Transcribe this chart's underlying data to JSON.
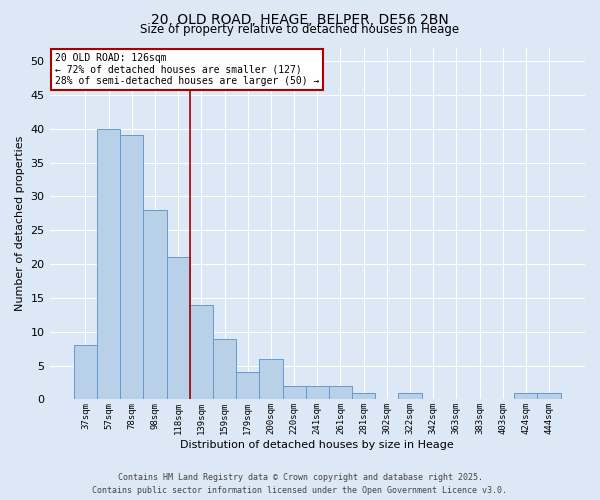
{
  "title_line1": "20, OLD ROAD, HEAGE, BELPER, DE56 2BN",
  "title_line2": "Size of property relative to detached houses in Heage",
  "xlabel": "Distribution of detached houses by size in Heage",
  "ylabel": "Number of detached properties",
  "categories": [
    "37sqm",
    "57sqm",
    "78sqm",
    "98sqm",
    "118sqm",
    "139sqm",
    "159sqm",
    "179sqm",
    "200sqm",
    "220sqm",
    "241sqm",
    "261sqm",
    "281sqm",
    "302sqm",
    "322sqm",
    "342sqm",
    "363sqm",
    "383sqm",
    "403sqm",
    "424sqm",
    "444sqm"
  ],
  "values": [
    8,
    40,
    39,
    28,
    21,
    14,
    9,
    4,
    6,
    2,
    2,
    2,
    1,
    0,
    1,
    0,
    0,
    0,
    0,
    1,
    1
  ],
  "bar_color": "#b8d0e8",
  "bar_edge_color": "#6699cc",
  "vline_x": 4.5,
  "vline_color": "#aa0000",
  "annotation_text": "20 OLD ROAD: 126sqm\n← 72% of detached houses are smaller (127)\n28% of semi-detached houses are larger (50) →",
  "annotation_box_color": "#ffffff",
  "annotation_border_color": "#aa0000",
  "ylim": [
    0,
    52
  ],
  "yticks": [
    0,
    5,
    10,
    15,
    20,
    25,
    30,
    35,
    40,
    45,
    50
  ],
  "footer_line1": "Contains HM Land Registry data © Crown copyright and database right 2025.",
  "footer_line2": "Contains public sector information licensed under the Open Government Licence v3.0.",
  "bg_color": "#dce8f5",
  "plot_bg_color": "#dce8f5",
  "title_fontsize": 10,
  "subtitle_fontsize": 8.5,
  "xlabel_fontsize": 8,
  "ylabel_fontsize": 8,
  "xtick_fontsize": 6.5,
  "ytick_fontsize": 8,
  "annot_fontsize": 7,
  "footer_fontsize": 6
}
